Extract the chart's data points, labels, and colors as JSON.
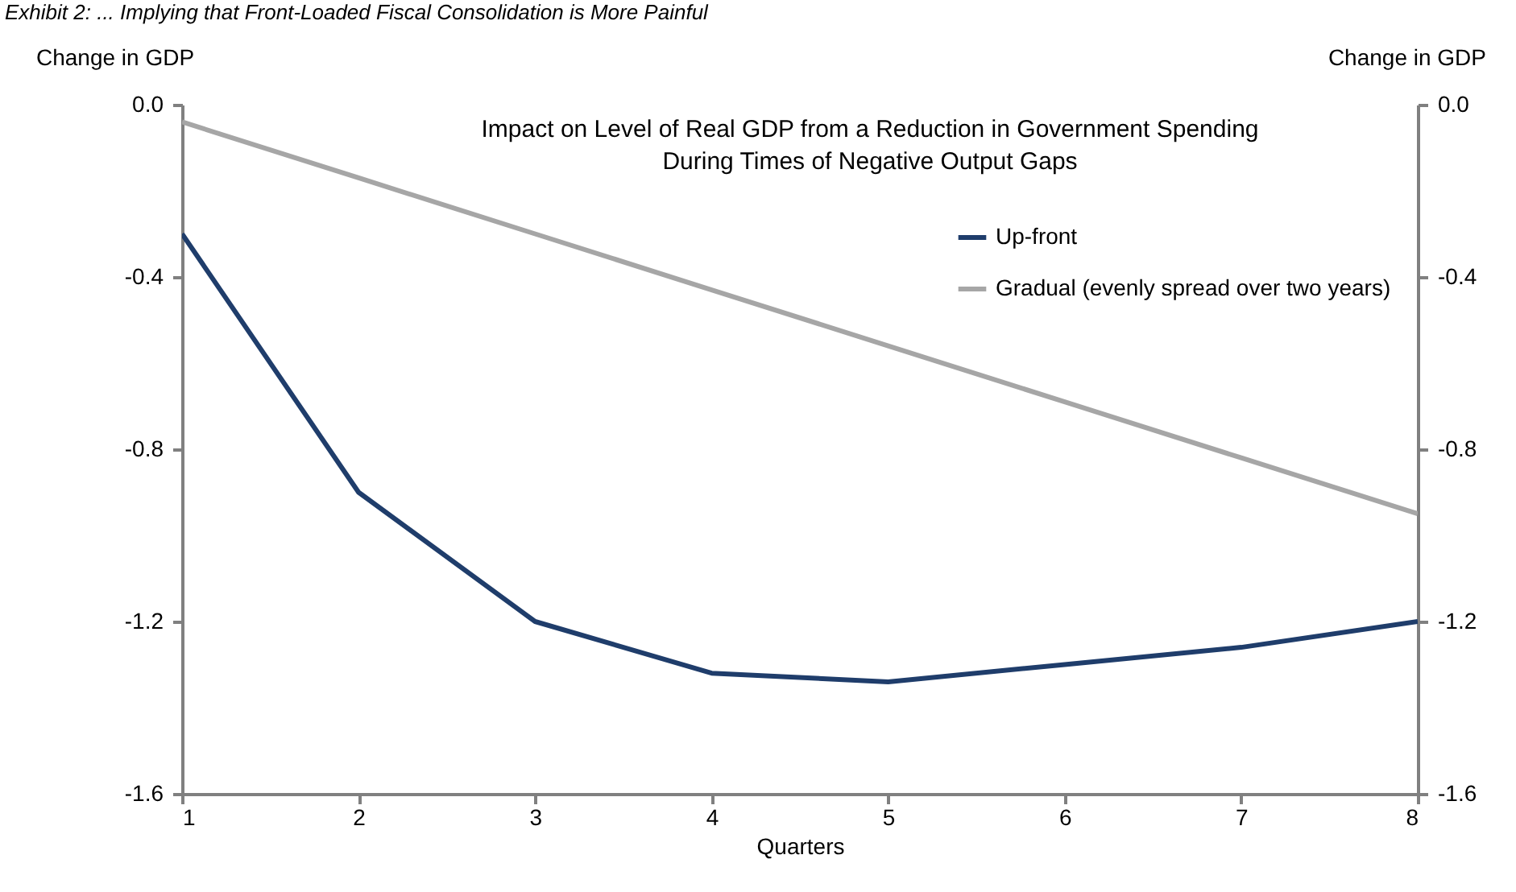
{
  "chart_data": {
    "type": "line",
    "title": "Exhibit 2: ... Implying that Front-Loaded Fiscal Consolidation is More Painful",
    "subtitle": "Impact on Level of Real GDP from a Reduction in Government Spending During Times of Negative Output Gaps",
    "xlabel": "Quarters",
    "ylabel": "Change in GDP",
    "y2label": "Change in GDP",
    "x": [
      1,
      2,
      3,
      4,
      5,
      6,
      7,
      8
    ],
    "series": [
      {
        "name": "Up-front",
        "color": "#1f3d6b",
        "values": [
          -0.3,
          -0.9,
          -1.2,
          -1.32,
          -1.34,
          -1.3,
          -1.26,
          -1.2
        ]
      },
      {
        "name": "Gradual (evenly spread over two years)",
        "color": "#a6a6a6",
        "values": [
          -0.04,
          -0.17,
          -0.3,
          -0.43,
          -0.56,
          -0.69,
          -0.82,
          -0.95
        ]
      }
    ],
    "xlim": [
      1,
      8
    ],
    "xticks": [
      1,
      2,
      3,
      4,
      5,
      6,
      7,
      8
    ],
    "ylim": [
      -1.6,
      0
    ],
    "yticks": [
      {
        "value": -1.6,
        "label": "-1.6"
      },
      {
        "value": -1.2,
        "label": "-1.2"
      },
      {
        "value": -0.8,
        "label": "-0.8"
      },
      {
        "value": -0.4,
        "label": "-0.4"
      },
      {
        "value": 0,
        "label": "0.0"
      }
    ],
    "y2lim": [
      -1.6,
      0
    ],
    "y2ticks": [
      {
        "value": -1.6,
        "label": "-1.6"
      },
      {
        "value": -1.2,
        "label": "-1.2"
      },
      {
        "value": -0.8,
        "label": "-0.8"
      },
      {
        "value": -0.4,
        "label": "-0.4"
      },
      {
        "value": 0,
        "label": "0.0"
      }
    ],
    "grid": false,
    "legend": "top right",
    "marker": "none",
    "line_style": "solid"
  }
}
